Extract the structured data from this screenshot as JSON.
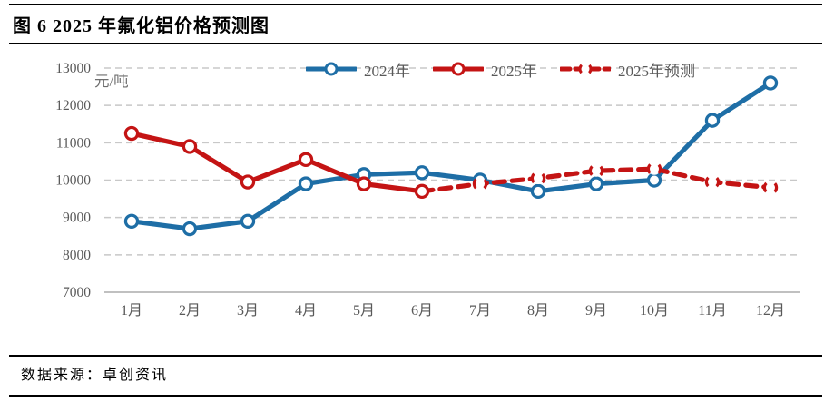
{
  "header": {
    "title": "图 6 2025 年氟化铝价格预测图"
  },
  "footer": {
    "source": "数据来源：卓创资讯"
  },
  "chart_data": {
    "type": "line",
    "title": "2025年氟化铝价格预测图",
    "unit_label": "元/吨",
    "categories": [
      "1月",
      "2月",
      "3月",
      "4月",
      "5月",
      "6月",
      "7月",
      "8月",
      "9月",
      "10月",
      "11月",
      "12月"
    ],
    "ylim": [
      7000,
      13000
    ],
    "yticks": [
      7000,
      8000,
      9000,
      10000,
      11000,
      12000,
      13000
    ],
    "grid": "horizontal-dashed",
    "legend_position": "top-center",
    "axis_text_color": "#595959",
    "grid_color": "#c8c8c8",
    "axis_line_color": "#ababab",
    "series": [
      {
        "name": "2024年",
        "color": "#1E6EA6",
        "line_style": "solid",
        "start_month": 1,
        "values": [
          8900,
          8700,
          8900,
          9900,
          10150,
          10200,
          10000,
          9700,
          9900,
          10000,
          11600,
          12600
        ]
      },
      {
        "name": "2025年",
        "color": "#C41414",
        "line_style": "solid",
        "start_month": 1,
        "values": [
          11250,
          10900,
          9950,
          10550,
          9900,
          9700
        ]
      },
      {
        "name": "2025年预测",
        "color": "#C41414",
        "line_style": "dashed",
        "start_month": 6,
        "values": [
          9700,
          9900,
          10050,
          10250,
          10300,
          9950,
          9800
        ]
      }
    ]
  }
}
